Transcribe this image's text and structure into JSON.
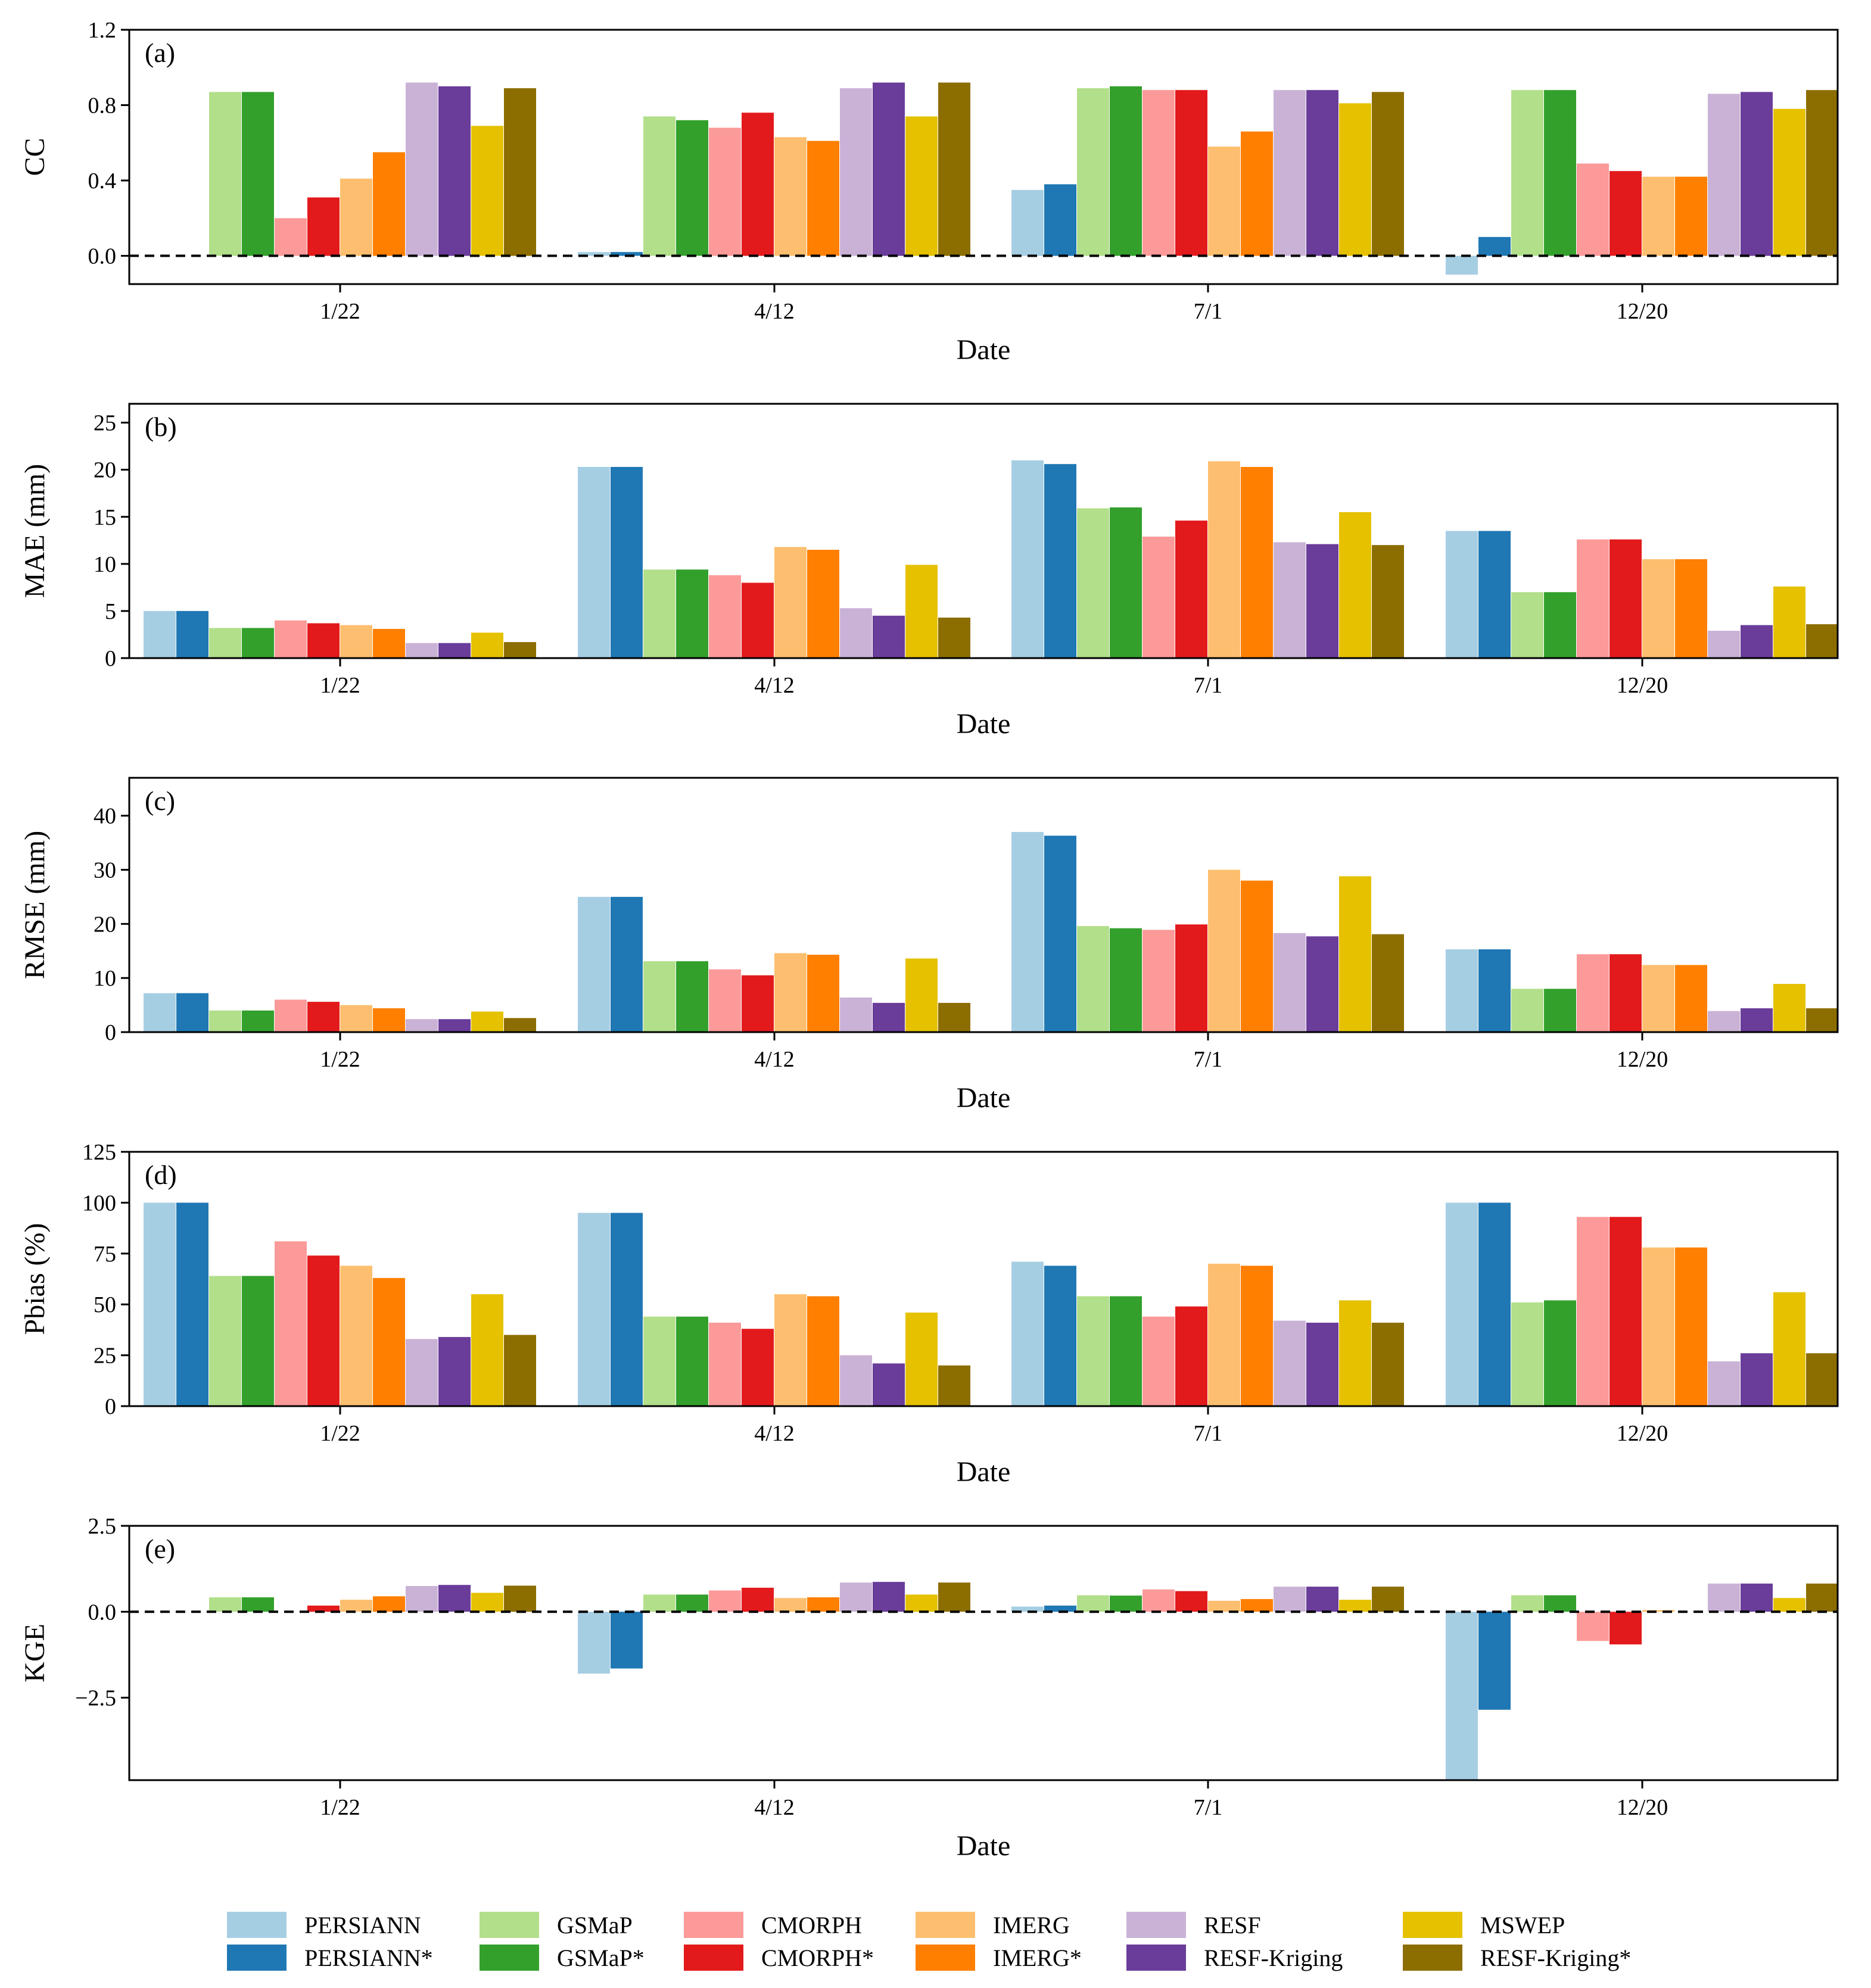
{
  "chart_data": {
    "type": "bar",
    "categories": [
      "1/22",
      "4/12",
      "7/1",
      "12/20"
    ],
    "xlabel": "Date",
    "series_names": [
      "PERSIANN",
      "PERSIANN*",
      "GSMaP",
      "GSMaP*",
      "CMORPH",
      "CMORPH*",
      "IMERG",
      "IMERG*",
      "RESF",
      "RESF-Kriging",
      "MSWEP",
      "RESF-Kriging*"
    ],
    "series_colors": [
      "#a6cee3",
      "#1f78b4",
      "#b2df8a",
      "#33a02c",
      "#fb9a99",
      "#e31a1c",
      "#fdbf6f",
      "#ff7f00",
      "#cab2d6",
      "#6a3d9a",
      "#e5c100",
      "#8c6d00"
    ],
    "legend_position": "bottom",
    "panels": [
      {
        "label": "(a)",
        "ylabel": "CC",
        "ylim": [
          -0.15,
          1.2
        ],
        "yticks": [
          0.0,
          0.4,
          0.8,
          1.2
        ],
        "ytick_labels": [
          "0.0",
          "0.4",
          "0.8",
          "1.2"
        ],
        "zero_line": true,
        "values": [
          [
            0.0,
            0.02,
            0.35,
            -0.1
          ],
          [
            0.0,
            0.02,
            0.38,
            0.1
          ],
          [
            0.87,
            0.74,
            0.89,
            0.88
          ],
          [
            0.87,
            0.72,
            0.9,
            0.88
          ],
          [
            0.2,
            0.68,
            0.88,
            0.49
          ],
          [
            0.31,
            0.76,
            0.88,
            0.45
          ],
          [
            0.41,
            0.63,
            0.58,
            0.42
          ],
          [
            0.55,
            0.61,
            0.66,
            0.42
          ],
          [
            0.92,
            0.89,
            0.88,
            0.86
          ],
          [
            0.9,
            0.92,
            0.88,
            0.87
          ],
          [
            0.69,
            0.74,
            0.81,
            0.78
          ],
          [
            0.89,
            0.92,
            0.87,
            0.88
          ]
        ]
      },
      {
        "label": "(b)",
        "ylabel": "MAE (mm)",
        "ylim": [
          0,
          27
        ],
        "yticks": [
          0,
          5,
          10,
          15,
          20,
          25
        ],
        "ytick_labels": [
          "0",
          "5",
          "10",
          "15",
          "20",
          "25"
        ],
        "zero_line": false,
        "values": [
          [
            5.0,
            20.3,
            21.0,
            13.5
          ],
          [
            5.0,
            20.3,
            20.6,
            13.5
          ],
          [
            3.2,
            9.4,
            15.9,
            7.0
          ],
          [
            3.2,
            9.4,
            16.0,
            7.0
          ],
          [
            4.0,
            8.8,
            12.9,
            12.6
          ],
          [
            3.7,
            8.0,
            14.6,
            12.6
          ],
          [
            3.5,
            11.8,
            20.9,
            10.5
          ],
          [
            3.1,
            11.5,
            20.3,
            10.5
          ],
          [
            1.6,
            5.3,
            12.3,
            2.9
          ],
          [
            1.6,
            4.5,
            12.1,
            3.5
          ],
          [
            2.7,
            9.9,
            15.5,
            7.6
          ],
          [
            1.7,
            4.3,
            12.0,
            3.6
          ]
        ]
      },
      {
        "label": "(c)",
        "ylabel": "RMSE (mm)",
        "ylim": [
          0,
          47
        ],
        "yticks": [
          0,
          10,
          20,
          30,
          40
        ],
        "ytick_labels": [
          "0",
          "10",
          "20",
          "30",
          "40"
        ],
        "zero_line": false,
        "values": [
          [
            7.2,
            25.0,
            37.0,
            15.3
          ],
          [
            7.2,
            25.0,
            36.3,
            15.3
          ],
          [
            4.0,
            13.1,
            19.6,
            8.0
          ],
          [
            4.0,
            13.1,
            19.2,
            8.0
          ],
          [
            6.0,
            11.6,
            18.9,
            14.4
          ],
          [
            5.6,
            10.5,
            19.9,
            14.4
          ],
          [
            5.0,
            14.6,
            30.0,
            12.4
          ],
          [
            4.4,
            14.3,
            28.0,
            12.4
          ],
          [
            2.4,
            6.4,
            18.3,
            3.9
          ],
          [
            2.4,
            5.4,
            17.7,
            4.4
          ],
          [
            3.8,
            13.6,
            28.8,
            8.9
          ],
          [
            2.6,
            5.4,
            18.1,
            4.4
          ]
        ]
      },
      {
        "label": "(d)",
        "ylabel": "Pbias (%)",
        "ylim": [
          0,
          125
        ],
        "yticks": [
          0,
          25,
          50,
          75,
          100,
          125
        ],
        "ytick_labels": [
          "0",
          "25",
          "50",
          "75",
          "100",
          "125"
        ],
        "zero_line": false,
        "values": [
          [
            100,
            95,
            71,
            100
          ],
          [
            100,
            95,
            69,
            100
          ],
          [
            64,
            44,
            54,
            51
          ],
          [
            64,
            44,
            54,
            52
          ],
          [
            81,
            41,
            44,
            93
          ],
          [
            74,
            38,
            49,
            93
          ],
          [
            69,
            55,
            70,
            78
          ],
          [
            63,
            54,
            69,
            78
          ],
          [
            33,
            25,
            42,
            22
          ],
          [
            34,
            21,
            41,
            26
          ],
          [
            55,
            46,
            52,
            56
          ],
          [
            35,
            20,
            41,
            26
          ]
        ]
      },
      {
        "label": "(e)",
        "ylabel": "KGE",
        "ylim": [
          -4.9,
          2.5
        ],
        "yticks": [
          -2.5,
          0.0,
          2.5
        ],
        "ytick_labels": [
          "−2.5",
          "0.0",
          "2.5"
        ],
        "zero_line": true,
        "values": [
          [
            0.0,
            -1.8,
            0.15,
            -4.9
          ],
          [
            0.0,
            -1.65,
            0.18,
            -2.85
          ],
          [
            0.42,
            0.5,
            0.48,
            0.48
          ],
          [
            0.42,
            0.5,
            0.47,
            0.48
          ],
          [
            0.0,
            0.62,
            0.65,
            -0.85
          ],
          [
            0.18,
            0.7,
            0.6,
            -0.95
          ],
          [
            0.35,
            0.4,
            0.32,
            0.05
          ],
          [
            0.45,
            0.42,
            0.37,
            0.0
          ],
          [
            0.75,
            0.85,
            0.73,
            0.82
          ],
          [
            0.78,
            0.87,
            0.73,
            0.82
          ],
          [
            0.55,
            0.5,
            0.35,
            0.4
          ],
          [
            0.76,
            0.85,
            0.73,
            0.82
          ]
        ]
      }
    ]
  }
}
